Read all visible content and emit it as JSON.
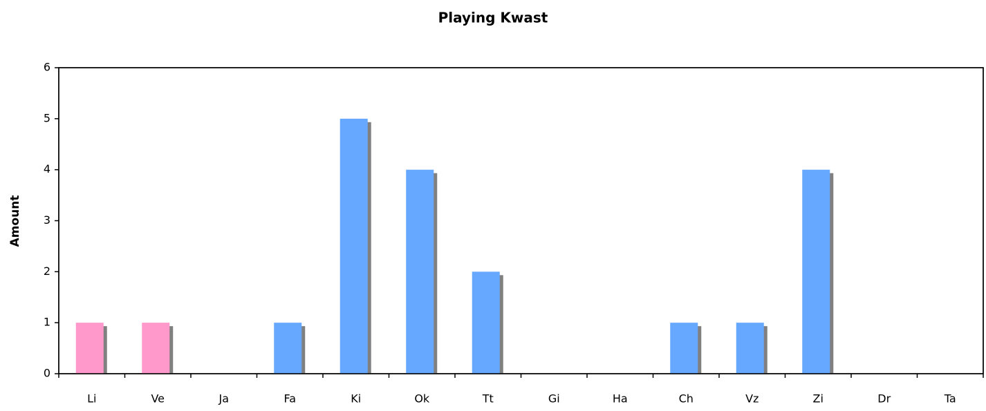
{
  "chart_data": {
    "type": "bar",
    "title": "Playing Kwast",
    "y_label": "Amount",
    "categories": [
      "Li",
      "Ve",
      "Ja",
      "Fa",
      "Ki",
      "Ok",
      "Tt",
      "Gi",
      "Ha",
      "Ch",
      "Vz",
      "Zi",
      "Dr",
      "Ta"
    ],
    "values": [
      1,
      1,
      0,
      1,
      5,
      4,
      2,
      0,
      0,
      1,
      1,
      4,
      0,
      0
    ],
    "colors": [
      "#ff99cc",
      "#ff99cc",
      "#66a8ff",
      "#66a8ff",
      "#66a8ff",
      "#66a8ff",
      "#66a8ff",
      "#66a8ff",
      "#66a8ff",
      "#66a8ff",
      "#66a8ff",
      "#66a8ff",
      "#66a8ff",
      "#66a8ff"
    ],
    "ylim": [
      0,
      6
    ],
    "yticks": [
      0,
      1,
      2,
      3,
      4,
      5,
      6
    ],
    "grid": false
  }
}
